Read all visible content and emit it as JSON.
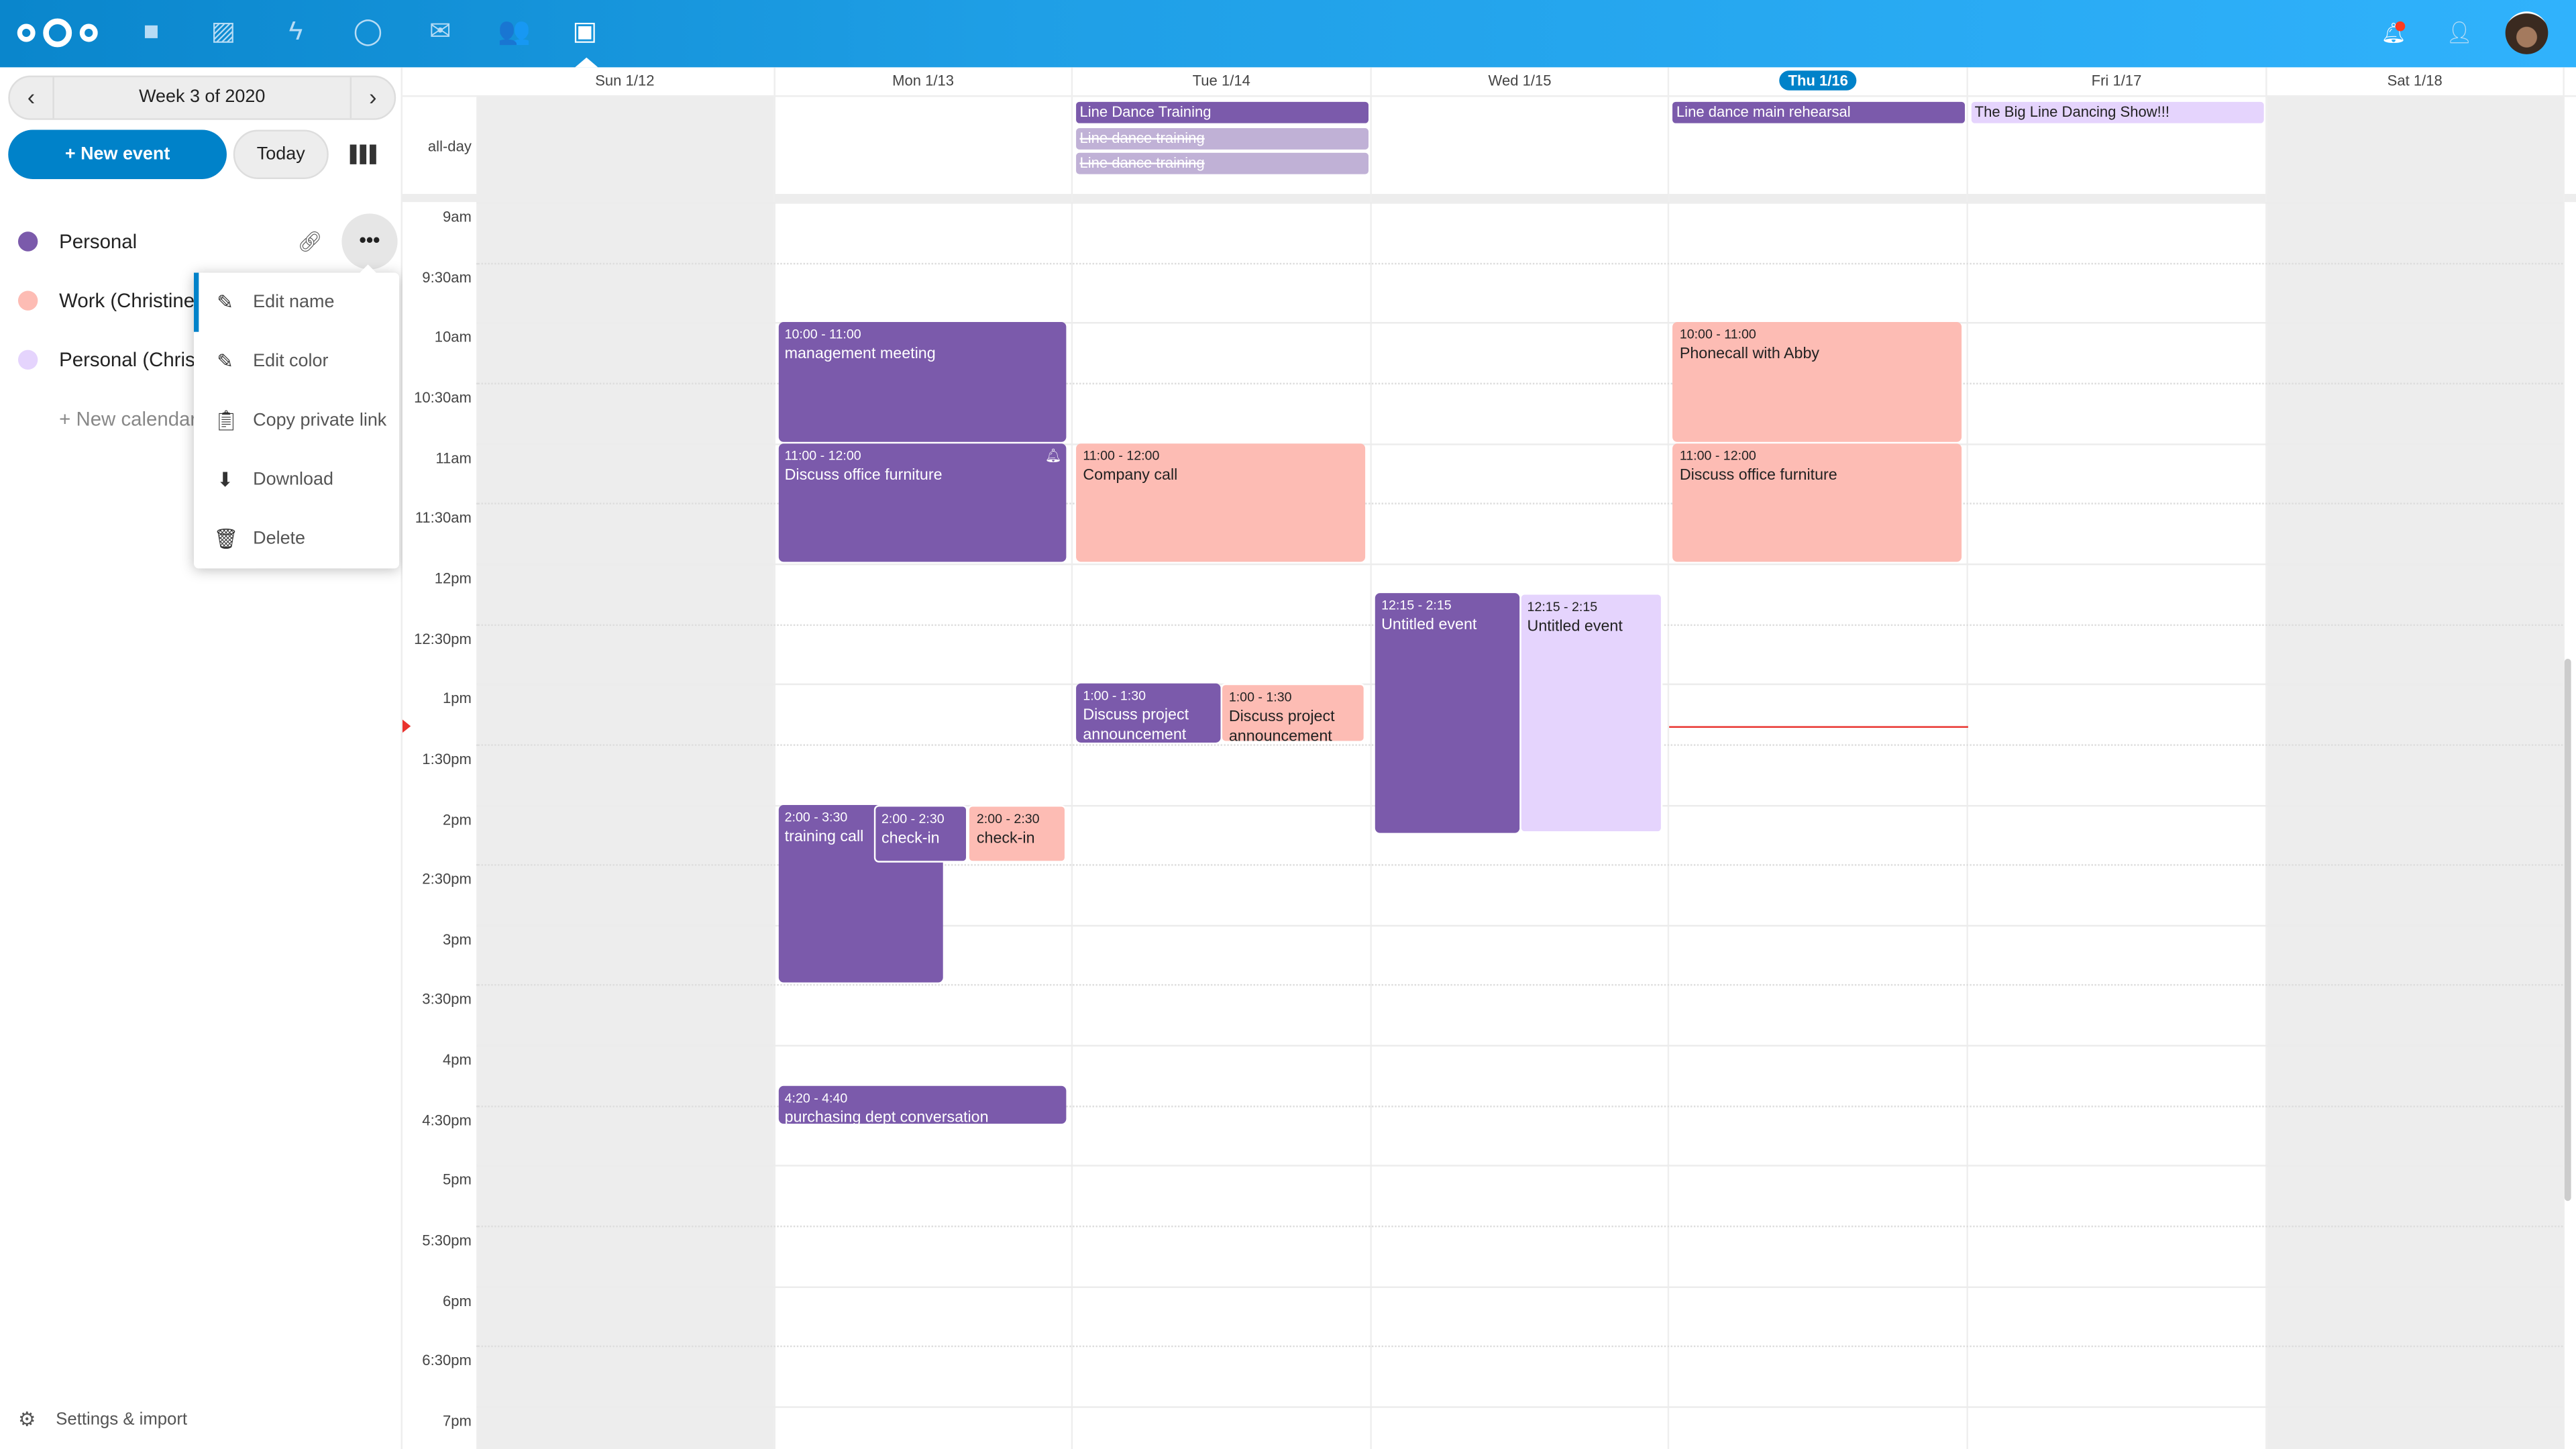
{
  "header": {
    "apps": [
      "logo-icon",
      "files-icon",
      "photos-icon",
      "activity-icon",
      "talk-icon",
      "mail-icon",
      "contacts-icon",
      "calendar-icon"
    ],
    "right": [
      "notifications-icon",
      "contacts-menu-icon",
      "avatar"
    ],
    "notification_color": "#ff3b1f",
    "accent": "#0082c9"
  },
  "sidebar": {
    "week_label": "Week 3 of 2020",
    "new_event": "+ New event",
    "today": "Today",
    "calendars": [
      {
        "name": "Personal",
        "color": "#7b5aab"
      },
      {
        "name": "Work (Christine S",
        "color": "#fdbcb4"
      },
      {
        "name": "Personal (Christi",
        "color": "#e5d4fd"
      }
    ],
    "new_calendar": "+ New calendar",
    "settings": "Settings & import",
    "menu": [
      {
        "icon": "pencil-icon",
        "label": "Edit name"
      },
      {
        "icon": "pencil-icon",
        "label": "Edit color"
      },
      {
        "icon": "clipboard-icon",
        "label": "Copy private link"
      },
      {
        "icon": "download-icon",
        "label": "Download"
      },
      {
        "icon": "trash-icon",
        "label": "Delete"
      }
    ]
  },
  "calendar": {
    "days": [
      "Sun 1/12",
      "Mon 1/13",
      "Tue 1/14",
      "Wed 1/15",
      "Thu 1/16",
      "Fri 1/17",
      "Sat 1/18"
    ],
    "today_index": 4,
    "allday_label": "all-day",
    "times": [
      "9am",
      "9:30am",
      "10am",
      "10:30am",
      "11am",
      "11:30am",
      "12pm",
      "12:30pm",
      "1pm",
      "1:30pm",
      "2pm",
      "2:30pm",
      "3pm",
      "3:30pm",
      "4pm",
      "4:30pm",
      "5pm",
      "5:30pm",
      "6pm",
      "6:30pm",
      "7pm"
    ],
    "allday_events": [
      {
        "day": "Tue 1/14",
        "title": "Line Dance Training",
        "cancelled": false
      },
      {
        "day": "Tue 1/14",
        "title": "Line dance training",
        "cancelled": true
      },
      {
        "day": "Tue 1/14",
        "title": "Line dance training",
        "cancelled": true
      },
      {
        "day": "Thu 1/16",
        "title": "Line dance main rehearsal",
        "cancelled": false
      },
      {
        "day": "Fri 1/17",
        "title": "The Big Line Dancing Show!!!",
        "cancelled": false
      }
    ],
    "events": [
      {
        "day": "Mon 1/13",
        "time": "10:00 - 11:00",
        "title": "management meeting"
      },
      {
        "day": "Mon 1/13",
        "time": "11:00 - 12:00",
        "title": "Discuss office furniture",
        "alarm": true
      },
      {
        "day": "Mon 1/13",
        "time": "2:00 - 3:30",
        "title": "training call"
      },
      {
        "day": "Mon 1/13",
        "time": "2:00 - 2:30",
        "title": "check-in"
      },
      {
        "day": "Mon 1/13",
        "time": "2:00 - 2:30",
        "title": "check-in"
      },
      {
        "day": "Mon 1/13",
        "time": "4:20 - 4:40",
        "title": "purchasing dept conversation"
      },
      {
        "day": "Tue 1/14",
        "time": "11:00 - 12:00",
        "title": "Company call"
      },
      {
        "day": "Tue 1/14",
        "time": "1:00 - 1:30",
        "title": "Discuss project announcement"
      },
      {
        "day": "Tue 1/14",
        "time": "1:00 - 1:30",
        "title": "Discuss project announcement"
      },
      {
        "day": "Wed 1/15",
        "time": "12:15 - 2:15",
        "title": "Untitled event"
      },
      {
        "day": "Wed 1/15",
        "time": "12:15 - 2:15",
        "title": "Untitled event"
      },
      {
        "day": "Thu 1/16",
        "time": "10:00 - 11:00",
        "title": "Phonecall with Abby"
      },
      {
        "day": "Thu 1/16",
        "time": "11:00 - 12:00",
        "title": "Discuss office furniture"
      }
    ]
  }
}
